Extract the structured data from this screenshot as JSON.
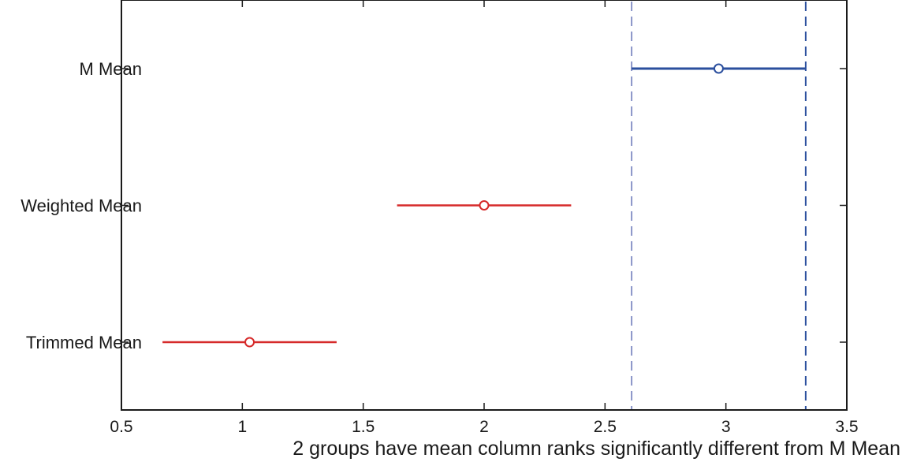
{
  "chart_data": {
    "type": "scatter",
    "title": "",
    "xlabel": "2 groups have mean column ranks significantly different from M Mean",
    "ylabel": "",
    "xlim": [
      0.5,
      3.5
    ],
    "xticks": [
      "0.5",
      "1",
      "1.5",
      "2",
      "2.5",
      "3",
      "3.5"
    ],
    "grid": false,
    "groups": [
      {
        "label": "M Mean",
        "mean": 2.97,
        "lower": 2.61,
        "upper": 3.33,
        "color": "#2b4f9e",
        "selected": true
      },
      {
        "label": "Weighted Mean",
        "mean": 2.0,
        "lower": 1.64,
        "upper": 2.36,
        "color": "#d62a2a",
        "selected": false
      },
      {
        "label": "Trimmed Mean",
        "mean": 1.03,
        "lower": 0.67,
        "upper": 1.39,
        "color": "#d62a2a",
        "selected": false
      }
    ],
    "reference_lines": [
      {
        "x": 2.61,
        "color": "#8a95c8"
      },
      {
        "x": 3.33,
        "color": "#2b4f9e"
      }
    ]
  }
}
